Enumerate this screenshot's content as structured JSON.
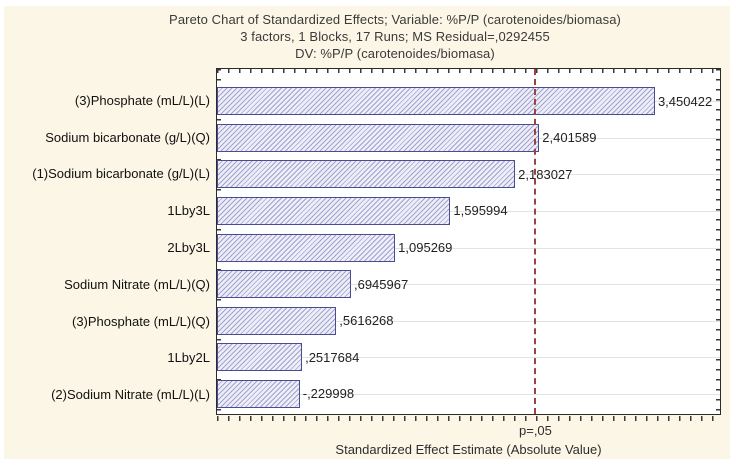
{
  "title": {
    "line1": "Pareto Chart of Standardized Effects; Variable: %P/P (carotenoides/biomasa)",
    "line2": "3 factors, 1 Blocks, 17 Runs; MS Residual=,0292455",
    "line3": "DV: %P/P (carotenoides/biomasa)"
  },
  "chart_data": {
    "type": "bar",
    "orientation": "horizontal",
    "categories": [
      "(3)Phosphate (mL/L)(L)",
      "Sodium bicarbonate (g/L)(Q)",
      "(1)Sodium bicarbonate (g/L)(L)",
      "1Lby3L",
      "2Lby3L",
      "Sodium Nitrate (mL/L)(Q)",
      "(3)Phosphate (mL/L)(Q)",
      "1Lby2L",
      "(2)Sodium Nitrate (mL/L)(L)"
    ],
    "values": [
      3.450422,
      2.401589,
      2.183027,
      1.595994,
      1.095269,
      0.6945967,
      0.5616268,
      0.2517684,
      -0.229998
    ],
    "value_labels": [
      "3,450422",
      "2,401589",
      "2,183027",
      "1,595994",
      "1,095269",
      ",6945967",
      ",5616268",
      ",2517684",
      "-,229998"
    ],
    "xlabel": "Standardized Effect Estimate (Absolute Value)",
    "ylabel": "",
    "axis": {
      "min": -0.52,
      "max": 4.04
    },
    "p_line": {
      "value": 2.3646,
      "label": "p=,05"
    },
    "grid": "horizontal-line-per-bar",
    "legend": "none",
    "colors": {
      "panel_background": "#fcf6e6",
      "plot_background": "#ffffff",
      "bar_fill": "#eeeef8",
      "bar_hatch": "#a2a2cf",
      "bar_border": "#4b4b91",
      "p_line": "#9a4343",
      "gridline": "#e3e3e0",
      "frame": "#2b2b2b"
    }
  }
}
